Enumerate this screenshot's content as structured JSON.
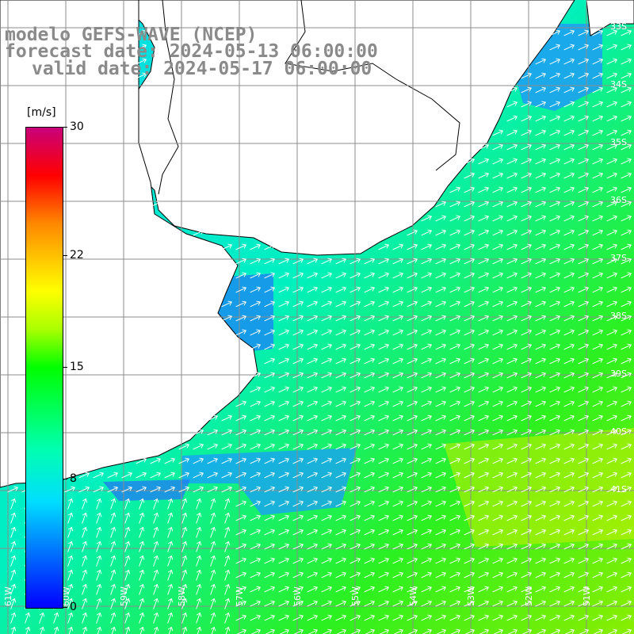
{
  "title": {
    "line1": "modelo GEFS-WAVE (NCEP)",
    "line2": "forecast date: 2024-05-13 06:00:00",
    "line3": "valid date: 2024-05-17 06:00:00"
  },
  "colorbar": {
    "unit": "[m/s]",
    "ticks": [
      "30",
      "22",
      "15",
      "8",
      "0"
    ],
    "tick_values": [
      30,
      22,
      15,
      8,
      0
    ],
    "colors": [
      "#0000ff",
      "#0077ff",
      "#00ddff",
      "#00ffb0",
      "#00ff00",
      "#aaff00",
      "#ffff00",
      "#ff8800",
      "#ff0000",
      "#c8007a"
    ]
  },
  "map": {
    "land_color": "#ffffff",
    "grid_color": "#8c8c8c",
    "coastline_color": "#000000",
    "arrow_color": "#ffffff",
    "lat_labels": [
      "33S",
      "34S",
      "35S",
      "36S",
      "37S",
      "38S",
      "39S",
      "40S",
      "41S"
    ],
    "lon_labels": [
      "61W",
      "60W",
      "59W",
      "58W",
      "57W",
      "56W",
      "55W",
      "54W",
      "53W",
      "52W",
      "51W"
    ]
  }
}
